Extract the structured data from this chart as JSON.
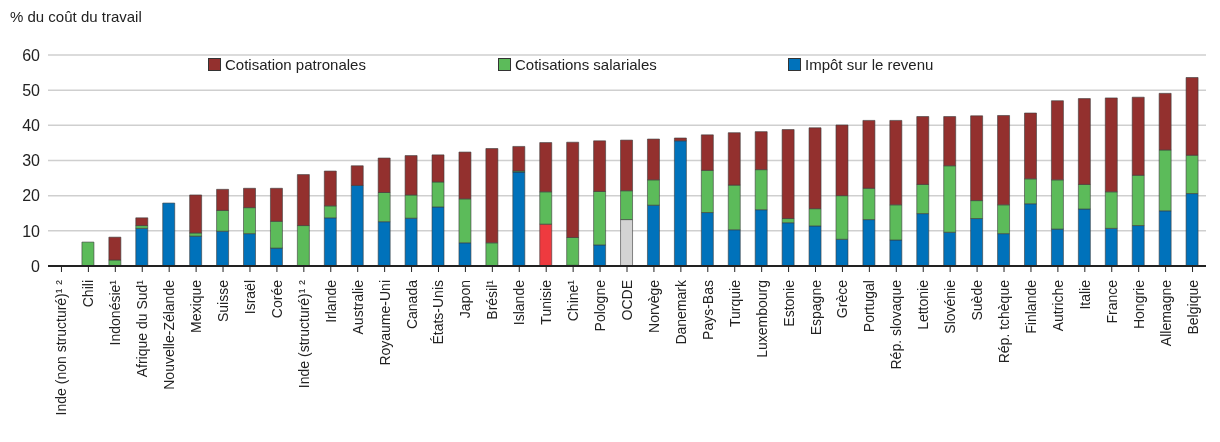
{
  "chart_data": {
    "type": "bar",
    "stacked": true,
    "ylabel": "% du coût du travail",
    "categories": [
      "Inde (non structuré)¹ ²",
      "Chili",
      "Indonésie¹",
      "Afrique du Sud¹",
      "Nouvelle-Zélande",
      "Mexique",
      "Suisse",
      "Israël",
      "Corée",
      "Inde (structuré)¹ ²",
      "Irlande",
      "Australie",
      "Royaume-Uni",
      "Canada",
      "États-Unis",
      "Japon",
      "Brésil¹",
      "Islande",
      "Tunisie",
      "Chine¹",
      "Pologne",
      "OCDE",
      "Norvège",
      "Danemark",
      "Pays-Bas",
      "Turquie",
      "Luxembourg",
      "Estonie",
      "Espagne",
      "Grèce",
      "Portugal",
      "Rép. slovaque",
      "Lettonie",
      "Slovénie",
      "Suède",
      "Rép. tchèque",
      "Finlande",
      "Autriche",
      "Italie",
      "France",
      "Hongrie",
      "Allemagne",
      "Belgique"
    ],
    "series": [
      {
        "name": "Impôt sur le revenu",
        "color": "#0072bb",
        "colors": [
          "#0072bb",
          "#0072bb",
          "#0072bb",
          "#0072bb",
          "#0072bb",
          "#0072bb",
          "#0072bb",
          "#0072bb",
          "#0072bb",
          "#0072bb",
          "#0072bb",
          "#0072bb",
          "#0072bb",
          "#0072bb",
          "#0072bb",
          "#0072bb",
          "#0072bb",
          "#0072bb",
          "#ee3a3f",
          "#0072bb",
          "#0072bb",
          "#d3d3d3",
          "#0072bb",
          "#0072bb",
          "#0072bb",
          "#0072bb",
          "#0072bb",
          "#0072bb",
          "#0072bb",
          "#0072bb",
          "#0072bb",
          "#0072bb",
          "#0072bb",
          "#0072bb",
          "#0072bb",
          "#0072bb",
          "#0072bb",
          "#0072bb",
          "#0072bb",
          "#0072bb",
          "#0072bb",
          "#0072bb",
          "#0072bb"
        ],
        "values": [
          0,
          0,
          0,
          10.7,
          17.9,
          8.5,
          9.9,
          9.2,
          5.1,
          0,
          13.7,
          22.9,
          12.6,
          13.6,
          16.8,
          6.6,
          0,
          26.7,
          11.9,
          0.2,
          6.0,
          13.2,
          17.3,
          35.6,
          15.2,
          10.3,
          16.0,
          12.3,
          11.4,
          7.6,
          13.2,
          7.4,
          14.9,
          9.6,
          13.5,
          9.2,
          17.7,
          10.5,
          16.2,
          10.7,
          11.5,
          15.7,
          20.6
        ]
      },
      {
        "name": "Cotisations salariales",
        "color": "#5cbb5a",
        "values": [
          0,
          6.8,
          1.7,
          0.8,
          0,
          0.9,
          5.9,
          7.4,
          7.6,
          11.5,
          3.4,
          0,
          8.3,
          6.6,
          7.1,
          12.5,
          6.6,
          0.3,
          9.2,
          7.9,
          15.2,
          8.2,
          7.2,
          0,
          12.0,
          12.7,
          11.4,
          1.2,
          4.9,
          12.4,
          8.9,
          10.0,
          8.3,
          18.9,
          5.1,
          8.2,
          7.1,
          14.0,
          7.0,
          10.4,
          14.3,
          17.3,
          10.9
        ]
      },
      {
        "name": "Cotisation patronales",
        "color": "#93302e",
        "values": [
          0,
          0,
          6.5,
          2.2,
          0,
          10.8,
          6.0,
          5.5,
          9.4,
          14.5,
          9.9,
          5.6,
          9.8,
          11.2,
          7.7,
          13.3,
          26.8,
          7.0,
          14.0,
          27.1,
          14.4,
          14.4,
          11.6,
          0.8,
          10.1,
          14.9,
          10.8,
          25.3,
          23.0,
          20.1,
          19.3,
          24.0,
          19.3,
          14.0,
          24.1,
          25.4,
          18.7,
          22.5,
          24.4,
          26.7,
          22.2,
          16.1,
          22.1
        ]
      }
    ],
    "ylim": [
      0,
      60
    ],
    "yticks": [
      0,
      10,
      20,
      30,
      40,
      50,
      60
    ],
    "grid": "y",
    "legend": "top"
  }
}
